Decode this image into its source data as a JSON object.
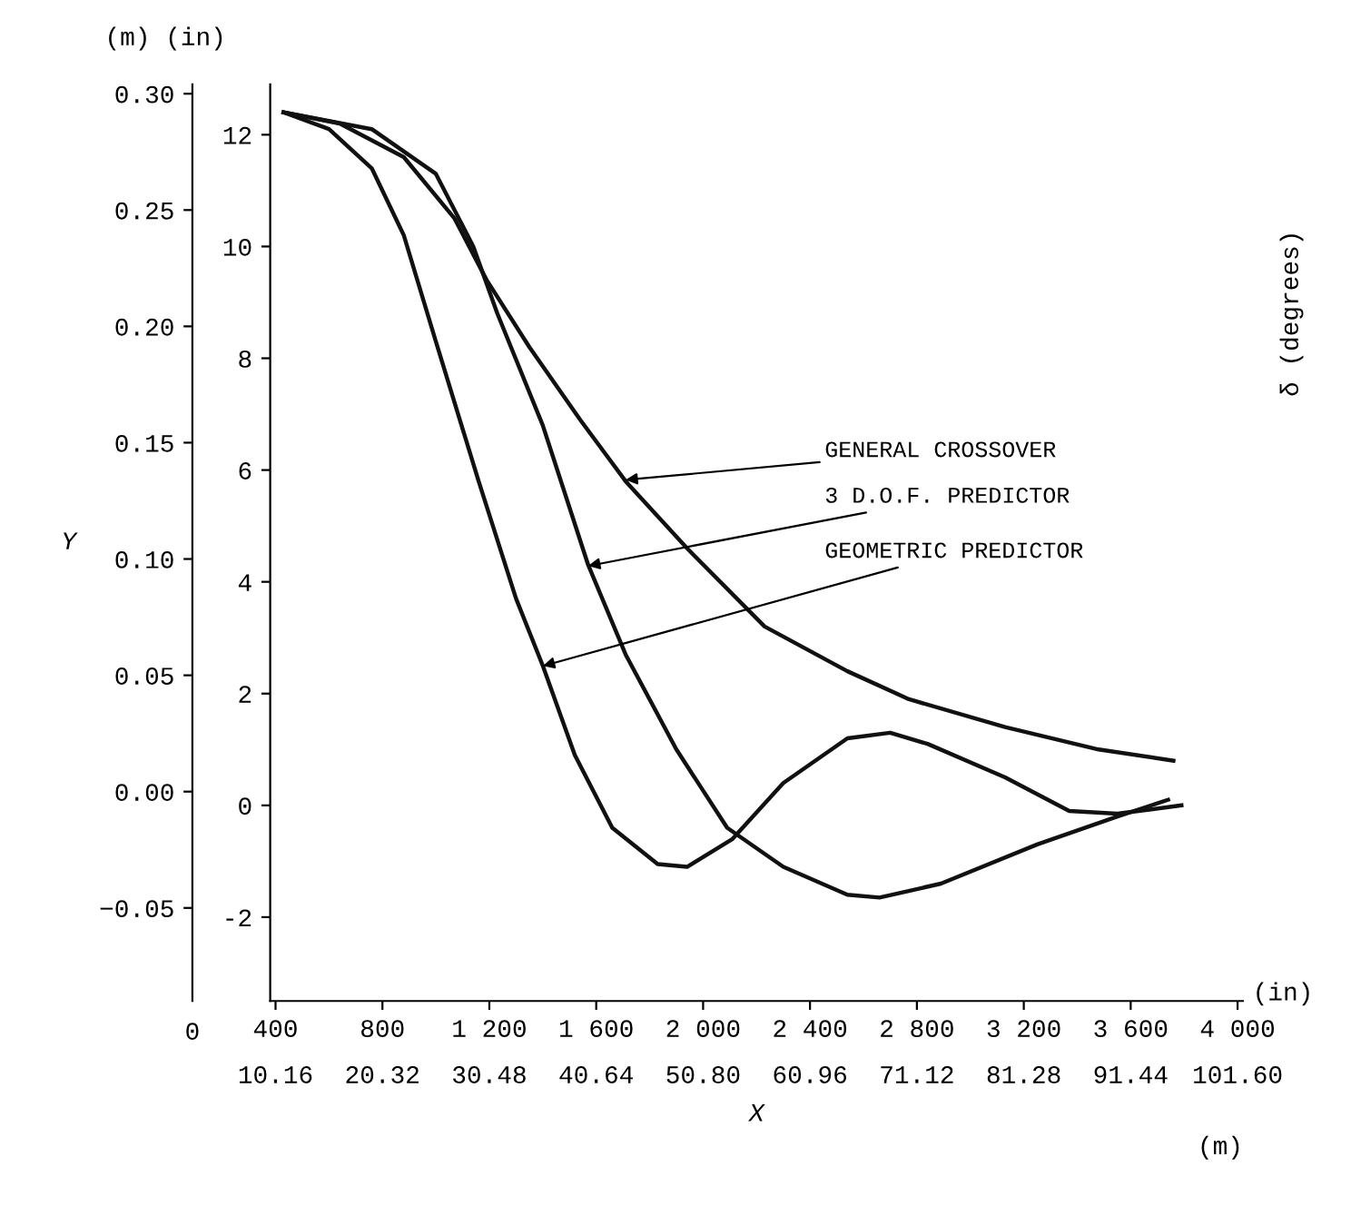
{
  "chart_data": {
    "type": "line",
    "xlabel": "X",
    "ylabel": "Y",
    "series": [
      {
        "axis": "y2",
        "color": "#111111",
        "x": [
          430,
          640,
          880,
          1070,
          1190,
          1350,
          1540,
          1710,
          1940,
          2230,
          2540,
          2770,
          3130,
          3480,
          3760
        ],
        "values": [
          12.4,
          12.2,
          11.6,
          10.5,
          9.4,
          8.2,
          6.9,
          5.8,
          4.6,
          3.2,
          2.4,
          1.9,
          1.4,
          1.0,
          0.8
        ]
      },
      {
        "axis": "y2",
        "color": "#111111",
        "x": [
          430,
          760,
          1000,
          1140,
          1230,
          1400,
          1570,
          1710,
          1900,
          2090,
          2300,
          2540,
          2660,
          2890,
          3250,
          3550,
          3740
        ],
        "values": [
          12.4,
          12.1,
          11.3,
          10.0,
          8.8,
          6.8,
          4.3,
          2.7,
          1.0,
          -0.4,
          -1.1,
          -1.6,
          -1.65,
          -1.4,
          -0.7,
          -0.2,
          0.1
        ]
      },
      {
        "axis": "y2",
        "color": "#111111",
        "x": [
          430,
          600,
          760,
          880,
          1000,
          1160,
          1300,
          1400,
          1520,
          1660,
          1830,
          1940,
          2110,
          2300,
          2540,
          2700,
          2840,
          3130,
          3370,
          3550,
          3790
        ],
        "values": [
          12.4,
          12.1,
          11.4,
          10.2,
          8.3,
          5.8,
          3.7,
          2.5,
          0.9,
          -0.4,
          -1.05,
          -1.1,
          -0.6,
          0.4,
          1.2,
          1.3,
          1.1,
          0.5,
          -0.1,
          -0.15,
          0.0
        ]
      }
    ],
    "annotations": [
      {
        "text": "GENERAL CROSSOVER",
        "x": 1710,
        "y": 0.134
      },
      {
        "text": "3 D.O.F. PREDICTOR",
        "x": 1570,
        "y": 0.097
      },
      {
        "text": "GEOMETRIC PREDICTOR",
        "x": 1400,
        "y": 0.054
      },
      "(m) (in)",
      "(in)",
      "(m)",
      "0",
      "δ (degrees)"
    ],
    "xlim": [
      380,
      4020
    ],
    "xticks": [
      {
        "value": 400,
        "label": "400"
      },
      {
        "value": 800,
        "label": "800"
      },
      {
        "value": 1200,
        "label": "1 200"
      },
      {
        "value": 1600,
        "label": "1 600"
      },
      {
        "value": 2000,
        "label": "2 000"
      },
      {
        "value": 2400,
        "label": "2 400"
      },
      {
        "value": 2800,
        "label": "2 800"
      },
      {
        "value": 3200,
        "label": "3 200"
      },
      {
        "value": 3600,
        "label": "3 600"
      },
      {
        "value": 4000,
        "label": "4 000"
      }
    ],
    "x2lim": [
      9.652,
      102.108
    ],
    "x2ticks": [
      {
        "value": 10.16,
        "label": "10.16"
      },
      {
        "value": 20.32,
        "label": "20.32"
      },
      {
        "value": 30.48,
        "label": "30.48"
      },
      {
        "value": 40.64,
        "label": "40.64"
      },
      {
        "value": 50.8,
        "label": "50.80"
      },
      {
        "value": 60.96,
        "label": "60.96"
      },
      {
        "value": 71.12,
        "label": "71.12"
      },
      {
        "value": 81.28,
        "label": "81.28"
      },
      {
        "value": 91.44,
        "label": "91.44"
      },
      {
        "value": 101.6,
        "label": "101.60"
      }
    ],
    "y2lim": [
      -3.5,
      12.9
    ],
    "y2ticks": [
      -2,
      0,
      2,
      4,
      6,
      8,
      10,
      12
    ],
    "ylim": [
      -0.09,
      0.304
    ],
    "yticks": [
      {
        "value": -0.05,
        "label": "−0.05"
      },
      {
        "value": 0.0,
        "label": "0.00"
      },
      {
        "value": 0.05,
        "label": "0.05"
      },
      {
        "value": 0.1,
        "label": "0.10"
      },
      {
        "value": 0.15,
        "label": "0.15"
      },
      {
        "value": 0.2,
        "label": "0.20"
      },
      {
        "value": 0.25,
        "label": "0.25"
      },
      {
        "value": 0.3,
        "label": "0.30"
      }
    ],
    "grid": false,
    "legend": false,
    "marker": "none",
    "line_style": "solid"
  }
}
